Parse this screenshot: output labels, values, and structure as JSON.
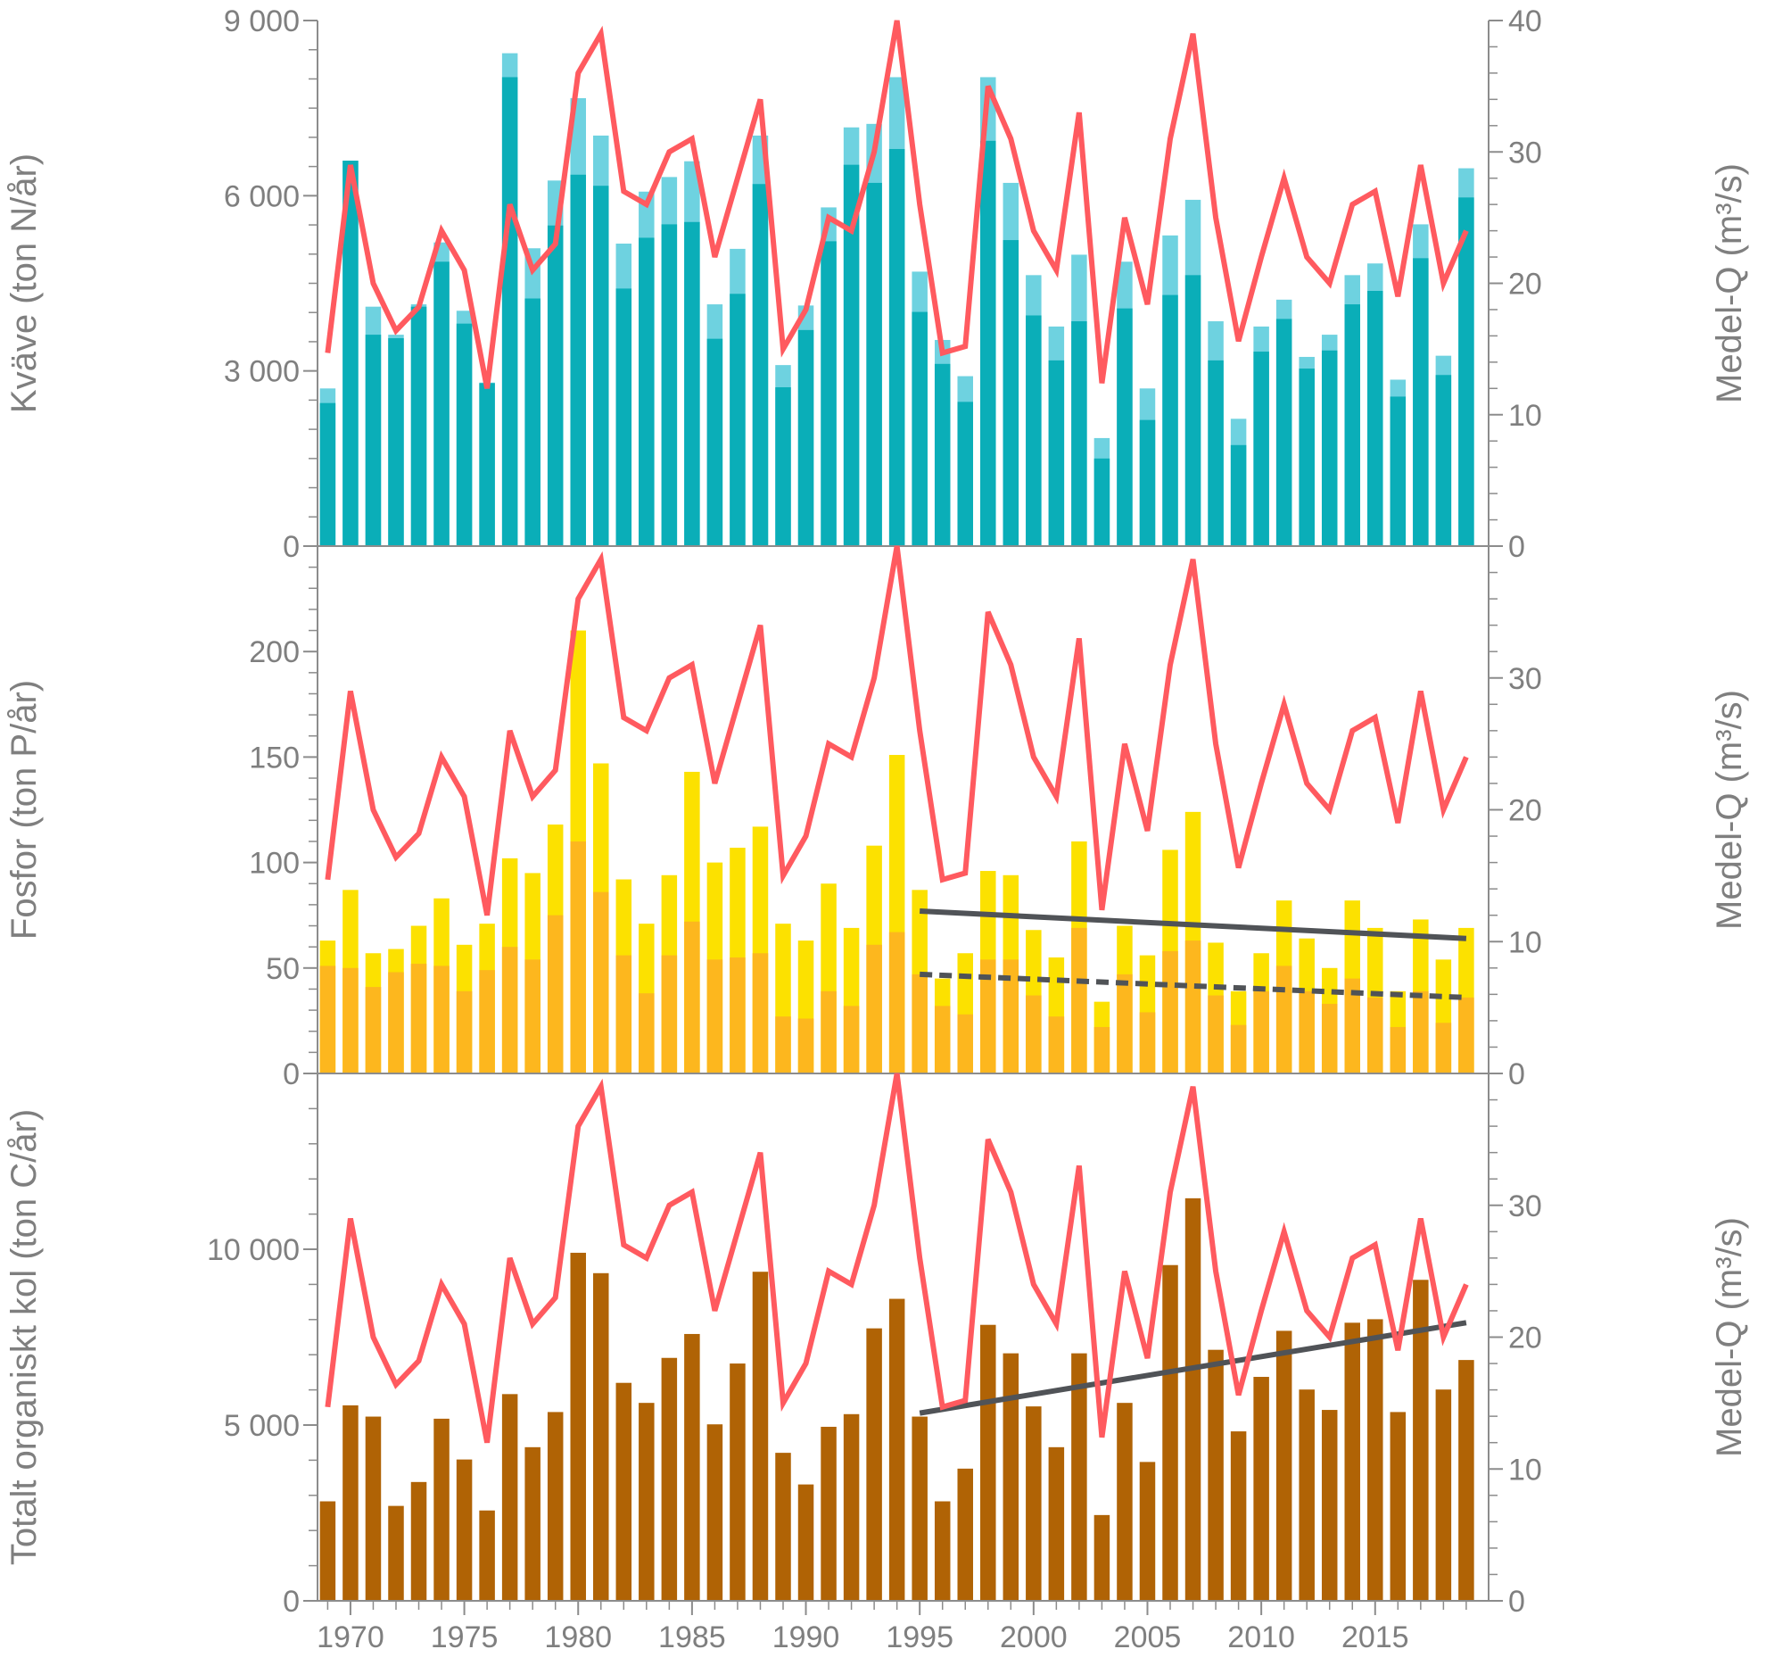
{
  "chart_data": [
    {
      "type": "bar",
      "stacked": true,
      "ylabel": "Kväve (ton N/år)",
      "ylim": [
        0,
        9000
      ],
      "yticks": [
        0,
        3000,
        6000,
        9000
      ],
      "ytick_labels": [
        "0",
        "3 000",
        "6 000",
        "9 000"
      ],
      "y2label": "Medel-Q (m³/s)",
      "y2lim": [
        0,
        40
      ],
      "y2ticks": [
        0,
        10,
        20,
        30,
        40
      ],
      "y2tick_labels": [
        "0",
        "10",
        "20",
        "30",
        "40"
      ],
      "series": [
        {
          "name": "Kväve (lower)",
          "color": "#0aaeb8",
          "values": [
            2450,
            6600,
            3620,
            3560,
            4100,
            4870,
            3810,
            2790,
            8030,
            4240,
            5490,
            6360,
            6170,
            4410,
            5280,
            5510,
            5550,
            3550,
            4320,
            6200,
            2720,
            3700,
            5220,
            6530,
            6220,
            6800,
            4010,
            3120,
            2470,
            6940,
            5240,
            3950,
            3180,
            3850,
            1500,
            4070,
            2160,
            4300,
            4640,
            3180,
            1730,
            3330,
            3890,
            3040,
            3350,
            4140,
            4370,
            2560,
            4930,
            2930,
            5970
          ]
        },
        {
          "name": "Kväve (total)",
          "color": "#6ed2e0",
          "values": [
            2700,
            6600,
            4100,
            3620,
            4140,
            5200,
            4030,
            2800,
            8440,
            5100,
            6260,
            7670,
            7030,
            5180,
            6070,
            6320,
            6590,
            4140,
            5090,
            7030,
            3100,
            4120,
            5800,
            7170,
            7230,
            8030,
            4700,
            3530,
            2910,
            8030,
            6220,
            4640,
            3760,
            4990,
            1850,
            4870,
            2700,
            5320,
            5930,
            3850,
            2180,
            3760,
            4220,
            3240,
            3620,
            4640,
            4840,
            2850,
            5510,
            3260,
            6470
          ]
        }
      ]
    },
    {
      "type": "bar",
      "stacked": true,
      "ylabel": "Fosfor (ton P/år)",
      "ylim": [
        0,
        250
      ],
      "yticks": [
        0,
        50,
        100,
        150,
        200
      ],
      "ytick_labels": [
        "0",
        "50",
        "100",
        "150",
        "200"
      ],
      "y2label": "Medel-Q (m³/s)",
      "y2lim": [
        0,
        40
      ],
      "y2ticks": [
        0,
        10,
        20,
        30
      ],
      "y2tick_labels": [
        "0",
        "10",
        "20",
        "30"
      ],
      "series": [
        {
          "name": "Fosfor (lower)",
          "color": "#fdb71e",
          "values": [
            51,
            50,
            41,
            48,
            52,
            51,
            39,
            49,
            60,
            54,
            75,
            110,
            86,
            56,
            38,
            56,
            72,
            54,
            55,
            57,
            27,
            26,
            39,
            32,
            61,
            67,
            47,
            32,
            28,
            54,
            54,
            37,
            27,
            69,
            22,
            47,
            29,
            58,
            63,
            37,
            23,
            39,
            51,
            39,
            33,
            45,
            36,
            22,
            39,
            24,
            36
          ]
        },
        {
          "name": "Fosfor (total)",
          "color": "#fce100",
          "values": [
            63,
            87,
            57,
            59,
            70,
            83,
            61,
            71,
            102,
            95,
            118,
            210,
            147,
            92,
            71,
            94,
            143,
            100,
            107,
            117,
            71,
            63,
            90,
            69,
            108,
            151,
            87,
            45,
            57,
            96,
            94,
            68,
            55,
            110,
            34,
            70,
            56,
            106,
            124,
            62,
            39,
            57,
            82,
            64,
            50,
            82,
            69,
            39,
            73,
            54,
            69
          ]
        }
      ],
      "trends": [
        {
          "name": "trend-total",
          "style": "solid",
          "x": [
            1995,
            2019
          ],
          "y": [
            77,
            64
          ]
        },
        {
          "name": "trend-lower",
          "style": "dashed",
          "x": [
            1995,
            2019
          ],
          "y": [
            47,
            36
          ]
        }
      ]
    },
    {
      "type": "bar",
      "ylabel": "Totalt organiskt kol (ton C/år)",
      "ylim": [
        0,
        15000
      ],
      "yticks": [
        0,
        5000,
        10000
      ],
      "ytick_labels": [
        "0",
        "5 000",
        "10 000"
      ],
      "y2label": "Medel-Q (m³/s)",
      "y2lim": [
        0,
        40
      ],
      "y2ticks": [
        0,
        10,
        20,
        30
      ],
      "y2tick_labels": [
        "0",
        "10",
        "20",
        "30"
      ],
      "xtick_labels": [
        "1970",
        "1975",
        "1980",
        "1985",
        "1990",
        "1995",
        "2000",
        "2005",
        "2010",
        "2015"
      ],
      "xticks": [
        1970,
        1975,
        1980,
        1985,
        1990,
        1995,
        2000,
        2005,
        2010,
        2015
      ],
      "series": [
        {
          "name": "TOC",
          "color": "#b06305",
          "values": [
            2830,
            5560,
            5240,
            2700,
            3380,
            5180,
            4020,
            2570,
            5880,
            4370,
            5370,
            9900,
            9320,
            6200,
            5630,
            6910,
            7590,
            5020,
            6750,
            9360,
            4210,
            3310,
            4950,
            5310,
            7750,
            8590,
            5240,
            2830,
            3760,
            7850,
            7040,
            5530,
            4370,
            7040,
            2440,
            5630,
            3950,
            9550,
            11450,
            7140,
            4820,
            6370,
            7680,
            6010,
            5430,
            7910,
            8010,
            5370,
            9130,
            6010,
            6850
          ]
        }
      ],
      "trends": [
        {
          "name": "trend-toc",
          "style": "solid",
          "x": [
            1995,
            2019
          ],
          "y": [
            5340,
            7910
          ]
        }
      ]
    }
  ],
  "shared": {
    "years_start": 1969,
    "years_end": 2019,
    "flow_series": {
      "name": "Medel-Q",
      "color": "#ff5a5f",
      "values": [
        14.7,
        29,
        20,
        16.4,
        18.2,
        24,
        21,
        12,
        26,
        21,
        23,
        36,
        39,
        27,
        26,
        30,
        31,
        22,
        28,
        34,
        15,
        18,
        25,
        24,
        30,
        40,
        26,
        14.7,
        15.2,
        35,
        31,
        24,
        21,
        33,
        12.4,
        25,
        18.4,
        31,
        39,
        25,
        15.6,
        22,
        28,
        22,
        20,
        26,
        27,
        19,
        29,
        20,
        24
      ]
    },
    "trend_color": "#505357",
    "axis_color": "#8c8c8c"
  }
}
